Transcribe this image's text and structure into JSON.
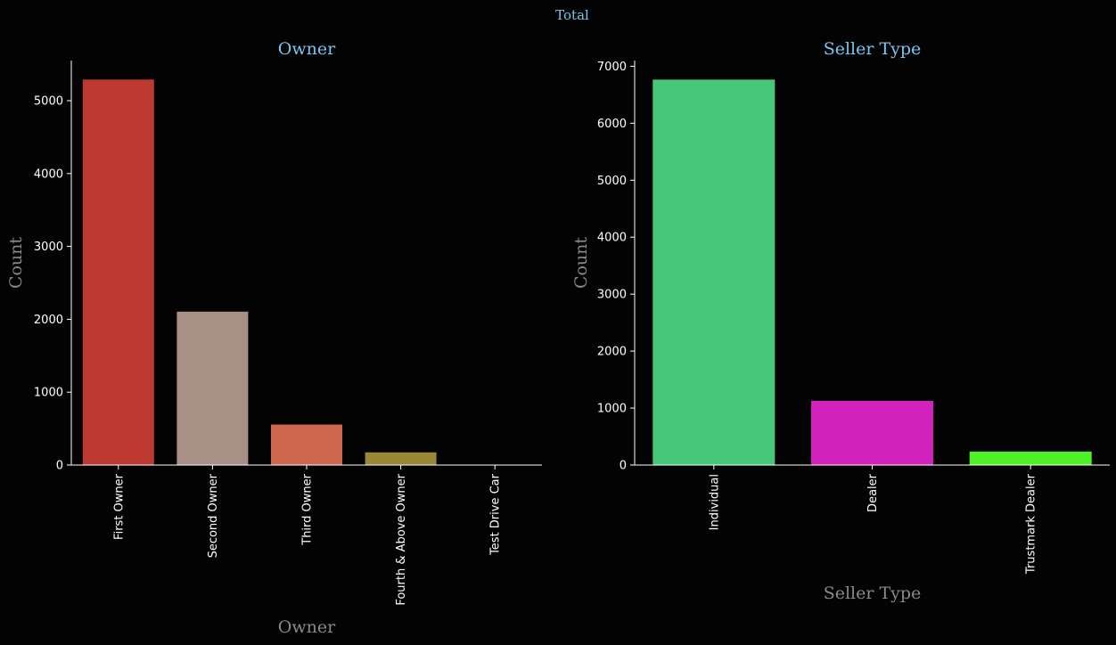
{
  "suptitle": "Total",
  "colors": {
    "background": "#030303",
    "title": "#7cc4f2",
    "axis_label": "#8a8a8a",
    "tick": "#ffffff",
    "axis_line": "#ffffff"
  },
  "chart_data": [
    {
      "type": "bar",
      "title": "Owner",
      "xlabel": "Owner",
      "ylabel": "Count",
      "categories": [
        "First Owner",
        "Second Owner",
        "Third Owner",
        "Fourth & Above Owner",
        "Test Drive Car"
      ],
      "values": [
        5290,
        2105,
        555,
        174,
        5
      ],
      "colors": [
        "#bd382e",
        "#a89184",
        "#cf6650",
        "#9a8838",
        "#4a8a9a"
      ],
      "ylim": [
        0,
        5550
      ],
      "yticks": [
        0,
        1000,
        2000,
        3000,
        4000,
        5000
      ],
      "grid": false
    },
    {
      "type": "bar",
      "title": "Seller Type",
      "xlabel": "Seller Type",
      "ylabel": "Count",
      "categories": [
        "Individual",
        "Dealer",
        "Trustmark Dealer"
      ],
      "values": [
        6766,
        1126,
        236
      ],
      "colors": [
        "#47c879",
        "#d321bd",
        "#4cf226"
      ],
      "ylim": [
        0,
        7100
      ],
      "yticks": [
        0,
        1000,
        2000,
        3000,
        4000,
        5000,
        6000,
        7000
      ],
      "grid": false
    }
  ]
}
